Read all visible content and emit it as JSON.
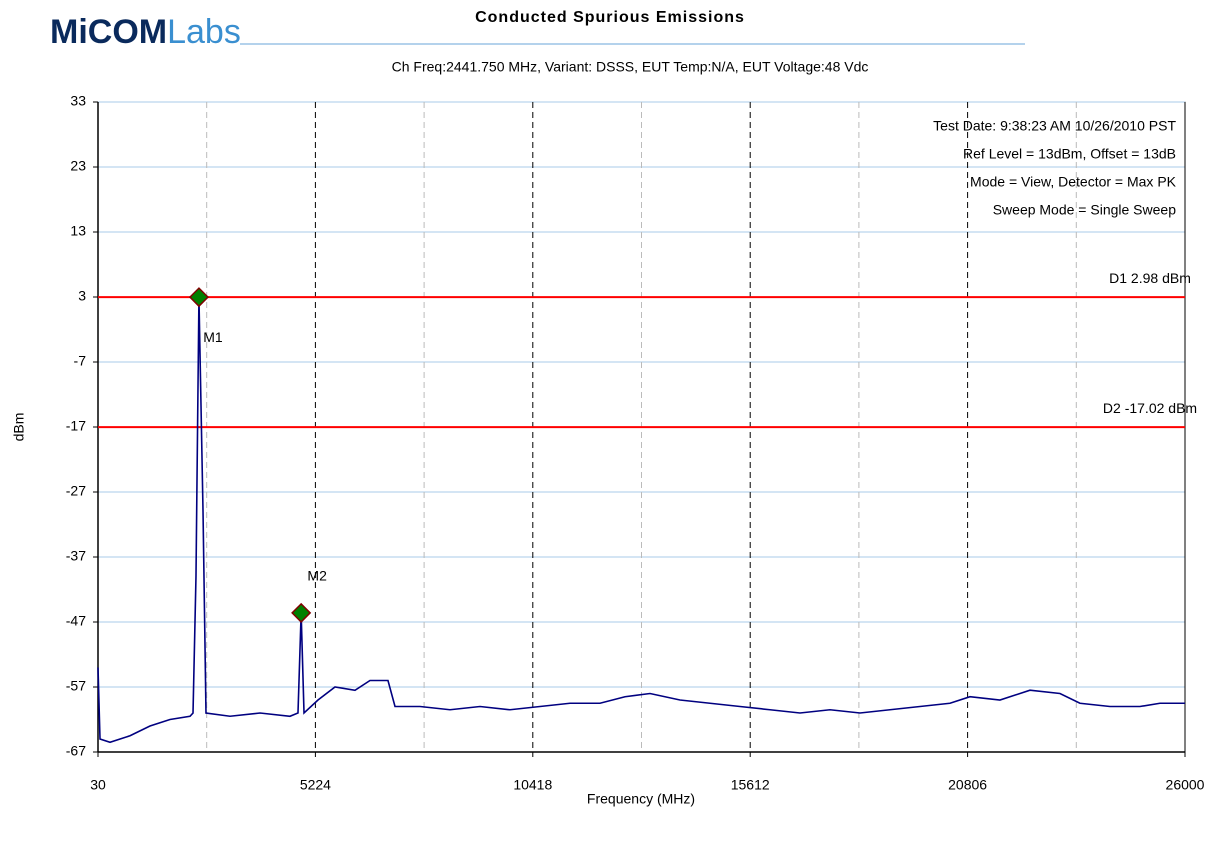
{
  "logo": {
    "bold": "MiCOM",
    "light": "Labs"
  },
  "chart_data": {
    "type": "line",
    "title": "Conducted Spurious Emissions",
    "subtitle": "Ch Freq:2441.750 MHz, Variant: DSSS, EUT Temp:N/A, EUT Voltage:48 Vdc",
    "xlabel": "Frequency (MHz)",
    "ylabel": "dBm",
    "info": [
      "Test Date: 9:38:23 AM 10/26/2010 PST",
      "Ref Level = 13dBm, Offset = 13dB",
      "Mode = View, Detector = Max PK",
      "Sweep Mode = Single Sweep"
    ],
    "xlim": [
      30,
      26000
    ],
    "xticks": [
      30,
      5224,
      10418,
      15612,
      20806,
      26000
    ],
    "xminorticks": [
      2627,
      7821,
      13015,
      18209,
      23403
    ],
    "ylim": [
      -67,
      33
    ],
    "yticks": [
      -67,
      -57,
      -47,
      -37,
      -27,
      -17,
      -7,
      3,
      13,
      23,
      33
    ],
    "grid": true,
    "x": [
      30,
      78,
      317,
      795,
      1272,
      1750,
      2228,
      2300,
      2371,
      2441.75,
      2539,
      2610,
      3184,
      3901,
      4617,
      4808,
      4883.5,
      4952,
      5286,
      5692,
      6170,
      6528,
      6958,
      7126,
      7723,
      8440,
      9157,
      9873,
      10590,
      11307,
      12023,
      12621,
      13218,
      13935,
      14651,
      15368,
      16085,
      16801,
      17518,
      18235,
      18951,
      19668,
      20385,
      20863,
      21579,
      22296,
      23013,
      23490,
      24207,
      24924,
      25402,
      26000
    ],
    "series": [
      {
        "name": "Trace",
        "color": "#000080",
        "values": [
          -54,
          -65,
          -65.5,
          -64.5,
          -63,
          -62,
          -61.5,
          -61,
          -40,
          2.98,
          -30,
          -61,
          -61.5,
          -61,
          -61.5,
          -61,
          -45.6,
          -61,
          -59,
          -57,
          -57.5,
          -56,
          -56,
          -60,
          -60,
          -60.5,
          -60,
          -60.5,
          -60,
          -59.5,
          -59.5,
          -58.5,
          -58,
          -59,
          -59.5,
          -60,
          -60.5,
          -61,
          -60.5,
          -61,
          -60.5,
          -60,
          -59.5,
          -58.5,
          -59,
          -57.5,
          -58,
          -59.5,
          -60,
          -60,
          -59.5,
          -59.5
        ]
      }
    ],
    "limit_lines": [
      {
        "label": "D1 2.98 dBm",
        "value": 2.98,
        "color": "#ff0000"
      },
      {
        "label": "D2 -17.02 dBm",
        "value": -17.02,
        "color": "#ff0000"
      }
    ],
    "markers": [
      {
        "label": "M1",
        "x": 2441.75,
        "y": 2.98,
        "color": "#008000"
      },
      {
        "label": "M2",
        "x": 4883.5,
        "y": -45.6,
        "color": "#008000"
      }
    ]
  }
}
